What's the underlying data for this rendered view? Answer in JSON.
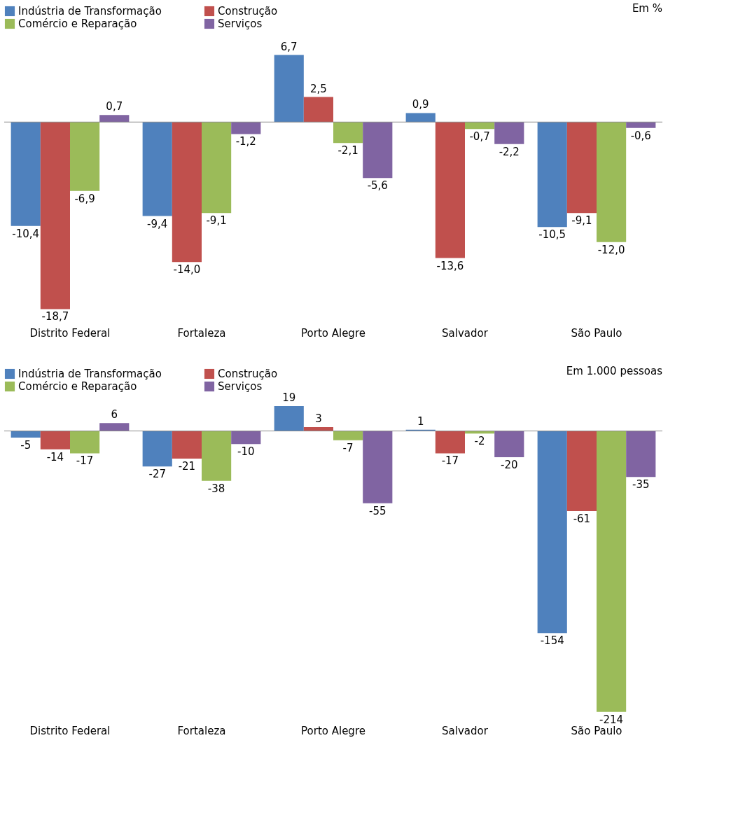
{
  "chart_data": [
    {
      "type": "bar",
      "categories": [
        "Distrito Federal",
        "Fortaleza",
        "Porto Alegre",
        "Salvador",
        "São Paulo"
      ],
      "legend": "top left",
      "annotations": [
        "Em %"
      ],
      "series": [
        {
          "name": "Indústria de Transformação",
          "color": "#4f81bd",
          "values": [
            -10.4,
            -9.4,
            6.7,
            0.9,
            -10.5
          ],
          "value_labels": [
            "-10,4",
            "-9,4",
            "6,7",
            "0,9",
            "-10,5"
          ]
        },
        {
          "name": "Construção",
          "color": "#c0504d",
          "values": [
            -18.7,
            -14.0,
            2.5,
            -13.6,
            -9.1
          ],
          "value_labels": [
            "-18,7",
            "-14,0",
            "2,5",
            "-13,6",
            "-9,1"
          ]
        },
        {
          "name": "Comércio e Reparação",
          "color": "#9bbb59",
          "values": [
            -6.9,
            -9.1,
            -2.1,
            -0.7,
            -12.0
          ],
          "value_labels": [
            "-6,9",
            "-9,1",
            "-2,1",
            "-0,7",
            "-12,0"
          ]
        },
        {
          "name": "Serviços",
          "color": "#8064a2",
          "values": [
            0.7,
            -1.2,
            -5.6,
            -2.2,
            -0.6
          ],
          "value_labels": [
            "0,7",
            "-1,2",
            "-5,6",
            "-2,2",
            "-0,6"
          ]
        }
      ]
    },
    {
      "type": "bar",
      "categories": [
        "Distrito Federal",
        "Fortaleza",
        "Porto Alegre",
        "Salvador",
        "São Paulo"
      ],
      "legend": "top left",
      "annotations": [
        "Em 1.000 pessoas"
      ],
      "series": [
        {
          "name": "Indústria de Transformação",
          "color": "#4f81bd",
          "values": [
            -5,
            -27,
            19,
            1,
            -154
          ],
          "value_labels": [
            "-5",
            "-27",
            "19",
            "1",
            "-154"
          ]
        },
        {
          "name": "Construção",
          "color": "#c0504d",
          "values": [
            -14,
            -21,
            3,
            -17,
            -61
          ],
          "value_labels": [
            "-14",
            "-21",
            "3",
            "-17",
            "-61"
          ]
        },
        {
          "name": "Comércio e Reparação",
          "color": "#9bbb59",
          "values": [
            -17,
            -38,
            -7,
            -2,
            -214
          ],
          "value_labels": [
            "-17",
            "-38",
            "-7",
            "-2",
            "-214"
          ]
        },
        {
          "name": "Serviços",
          "color": "#8064a2",
          "values": [
            6,
            -10,
            -55,
            -20,
            -35
          ],
          "value_labels": [
            "6",
            "-10",
            "-55",
            "-20",
            "-35"
          ]
        }
      ]
    }
  ]
}
